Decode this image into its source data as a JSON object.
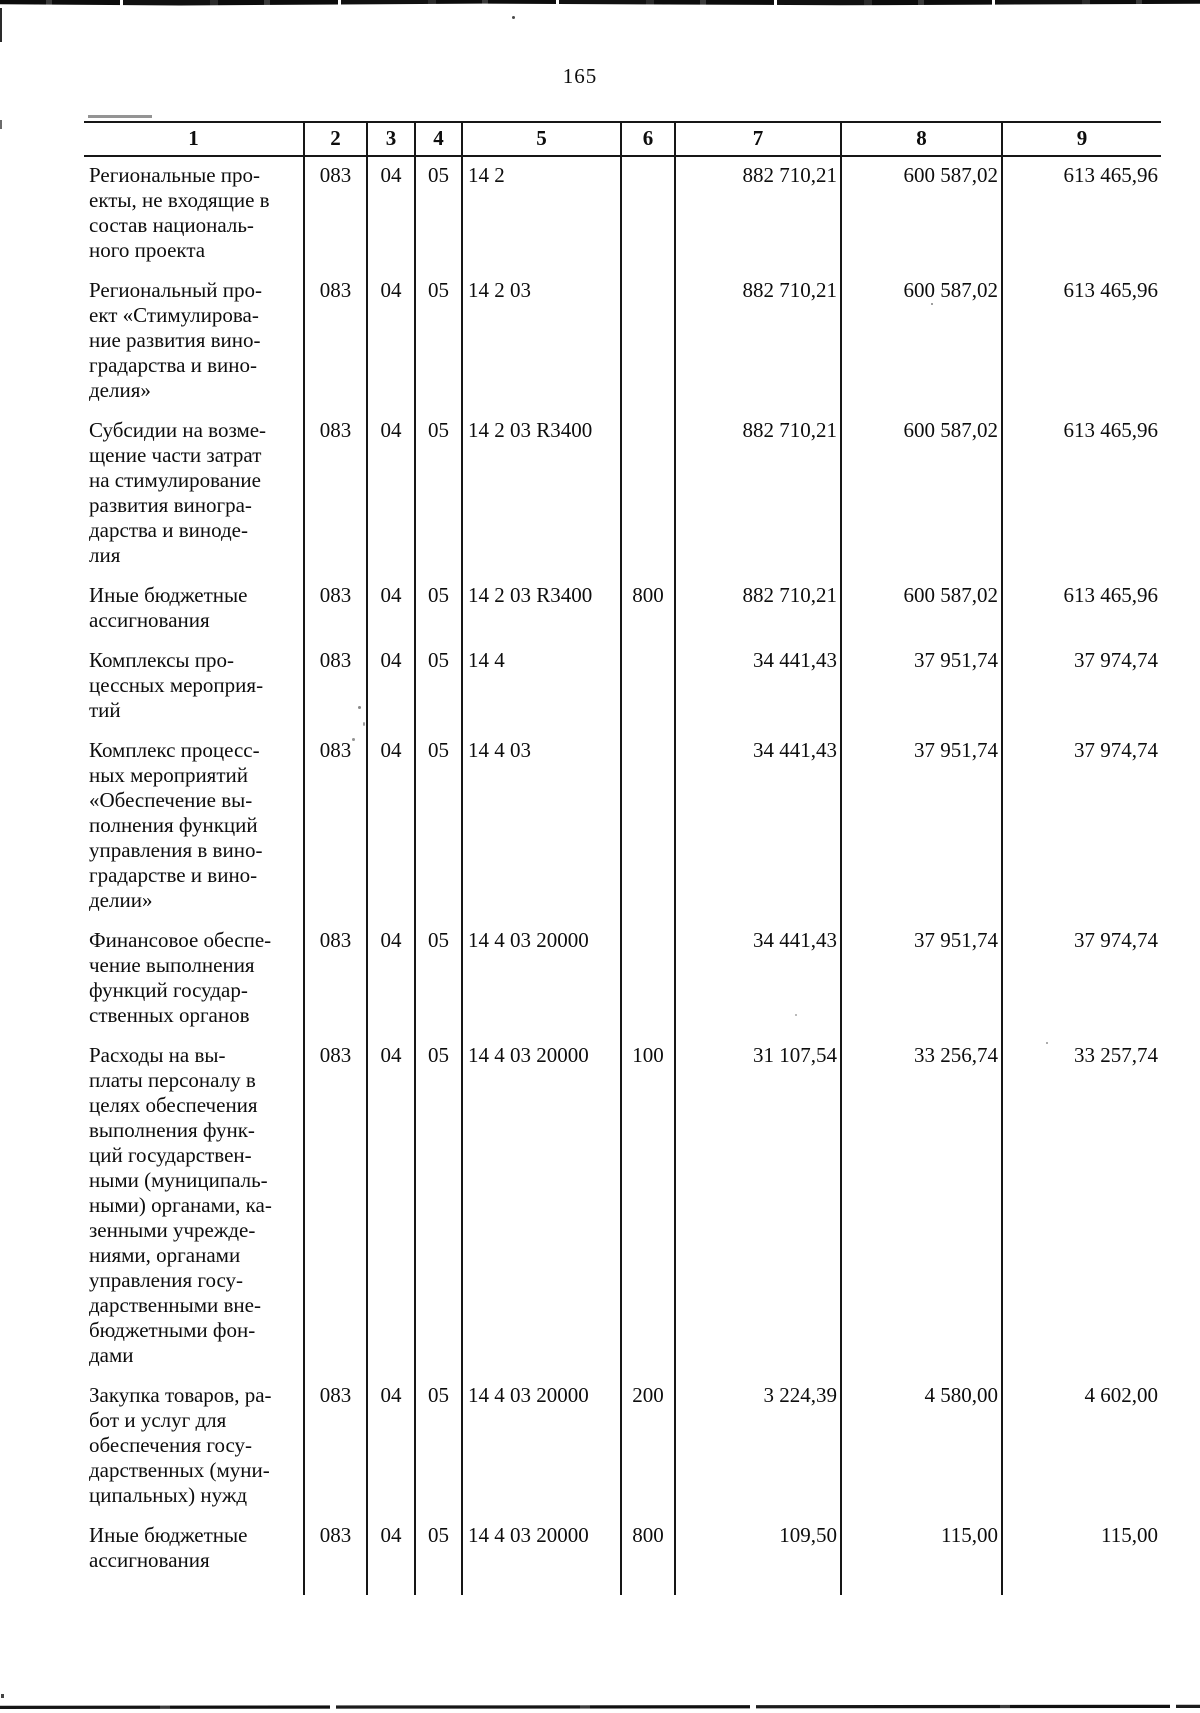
{
  "page": {
    "number": "165"
  },
  "table": {
    "columns": [
      "1",
      "2",
      "3",
      "4",
      "5",
      "6",
      "7",
      "8",
      "9"
    ],
    "rows": [
      {
        "name": "Региональные про-\nекты, не входящие в\nсостав националь-\nного проекта",
        "c2": "083",
        "c3": "04",
        "c4": "05",
        "c5": "14 2",
        "c6": "",
        "c7": "882 710,21",
        "c8": "600 587,02",
        "c9": "613 465,96"
      },
      {
        "name": "Региональный про-\nект «Стимулирова-\nние развития вино-\nградарства и вино-\nделия»",
        "c2": "083",
        "c3": "04",
        "c4": "05",
        "c5": "14 2 03",
        "c6": "",
        "c7": "882 710,21",
        "c8": "600 587,02",
        "c9": "613 465,96"
      },
      {
        "name": "Субсидии на возме-\nщение части затрат\nна стимулирование\nразвития виногра-\nдарства и виноде-\nлия",
        "c2": "083",
        "c3": "04",
        "c4": "05",
        "c5": "14 2 03 R3400",
        "c6": "",
        "c7": "882 710,21",
        "c8": "600 587,02",
        "c9": "613 465,96"
      },
      {
        "name": "Иные бюджетные\nассигнования",
        "c2": "083",
        "c3": "04",
        "c4": "05",
        "c5": "14 2 03 R3400",
        "c6": "800",
        "c7": "882 710,21",
        "c8": "600 587,02",
        "c9": "613 465,96"
      },
      {
        "name": "Комплексы про-\nцессных мероприя-\nтий",
        "c2": "083",
        "c3": "04",
        "c4": "05",
        "c5": "14 4",
        "c6": "",
        "c7": "34 441,43",
        "c8": "37 951,74",
        "c9": "37 974,74"
      },
      {
        "name": "Комплекс процесс-\nных мероприятий\n«Обеспечение вы-\nполнения функций\nуправления в вино-\nградарстве и вино-\nделии»",
        "c2": "083",
        "c3": "04",
        "c4": "05",
        "c5": "14 4 03",
        "c6": "",
        "c7": "34 441,43",
        "c8": "37 951,74",
        "c9": "37 974,74"
      },
      {
        "name": "Финансовое обеспе-\nчение выполнения\nфункций государ-\nственных органов",
        "c2": "083",
        "c3": "04",
        "c4": "05",
        "c5": "14 4 03 20000",
        "c6": "",
        "c7": "34 441,43",
        "c8": "37 951,74",
        "c9": "37 974,74"
      },
      {
        "name": "Расходы на вы-\nплаты персоналу в\nцелях обеспечения\nвыполнения функ-\nций государствен-\nными (муниципаль-\nными) органами, ка-\nзенными учрежде-\nниями, органами\nуправления госу-\nдарственными вне-\nбюджетными фон-\nдами",
        "c2": "083",
        "c3": "04",
        "c4": "05",
        "c5": "14 4 03 20000",
        "c6": "100",
        "c7": "31 107,54",
        "c8": "33 256,74",
        "c9": "33 257,74"
      },
      {
        "name": "Закупка товаров, ра-\nбот и услуг для\nобеспечения госу-\nдарственных (муни-\nципальных) нужд",
        "c2": "083",
        "c3": "04",
        "c4": "05",
        "c5": "14 4 03 20000",
        "c6": "200",
        "c7": "3 224,39",
        "c8": "4 580,00",
        "c9": "4 602,00"
      },
      {
        "name": "Иные бюджетные\nассигнования",
        "c2": "083",
        "c3": "04",
        "c4": "05",
        "c5": "14 4 03 20000",
        "c6": "800",
        "c7": "109,50",
        "c8": "115,00",
        "c9": "115,00"
      }
    ]
  }
}
